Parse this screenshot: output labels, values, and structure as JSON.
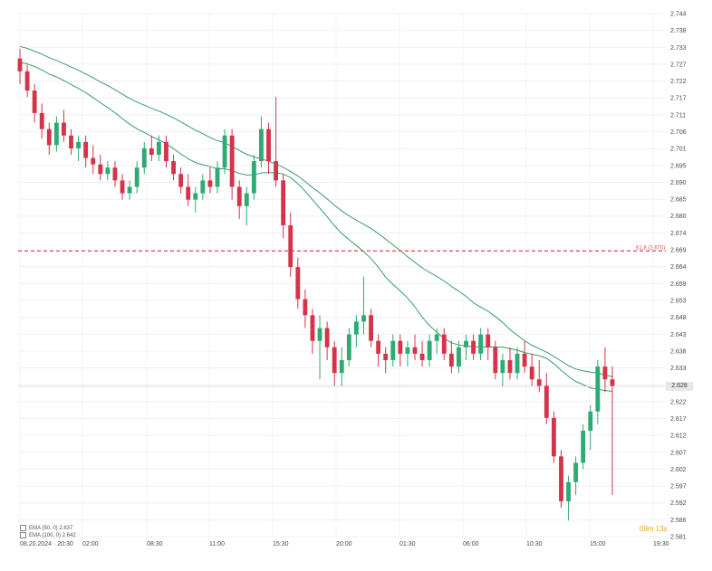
{
  "chart_data": {
    "type": "candlestick",
    "y_ticks": [
      "2.744",
      "2.738",
      "2.733",
      "2.727",
      "2.722",
      "2.717",
      "2.711",
      "2.706",
      "2.701",
      "2.695",
      "2.690",
      "2.685",
      "2.680",
      "2.674",
      "2.669",
      "2.664",
      "2.659",
      "2.653",
      "2.648",
      "2.643",
      "2.638",
      "2.633",
      "2.627",
      "2.622",
      "2.617",
      "2.612",
      "2.607",
      "2.602",
      "2.597",
      "2.592",
      "2.586",
      "2.581"
    ],
    "ylim": [
      2.581,
      2.744
    ],
    "x_ticks": [
      "08.20.2024 · 20:30",
      "02:00",
      "08:30",
      "11:00",
      "15:30",
      "20:00",
      "01:30",
      "06:00",
      "10:30",
      "15:00",
      "19:30"
    ],
    "current_price": "2.628",
    "fib_level": {
      "label": "61.8 (2.670)",
      "value": 2.67,
      "color": "#d9534f"
    },
    "moving_averages": [
      {
        "legend": "EMA (50, 0) 2.637",
        "color": "#3a9d6a"
      },
      {
        "legend": "EMA (100, 0) 2.642",
        "color": "#3a9d6a"
      }
    ],
    "colors": {
      "up": "#2eaa73",
      "down": "#d6334a"
    },
    "candles": [
      [
        2.73,
        2.733,
        2.722,
        2.726
      ],
      [
        2.726,
        2.728,
        2.718,
        2.72
      ],
      [
        2.72,
        2.722,
        2.71,
        2.713
      ],
      [
        2.713,
        2.716,
        2.705,
        2.708
      ],
      [
        2.708,
        2.71,
        2.7,
        2.703
      ],
      [
        2.703,
        2.712,
        2.701,
        2.71
      ],
      [
        2.71,
        2.714,
        2.704,
        2.706
      ],
      [
        2.706,
        2.708,
        2.7,
        2.702
      ],
      [
        2.702,
        2.706,
        2.698,
        2.704
      ],
      [
        2.704,
        2.706,
        2.696,
        2.699
      ],
      [
        2.699,
        2.703,
        2.694,
        2.697
      ],
      [
        2.697,
        2.7,
        2.692,
        2.694
      ],
      [
        2.694,
        2.698,
        2.692,
        2.696
      ],
      [
        2.696,
        2.698,
        2.69,
        2.692
      ],
      [
        2.692,
        2.694,
        2.686,
        2.688
      ],
      [
        2.688,
        2.692,
        2.686,
        2.69
      ],
      [
        2.69,
        2.698,
        2.688,
        2.696
      ],
      [
        2.696,
        2.704,
        2.694,
        2.702
      ],
      [
        2.702,
        2.706,
        2.698,
        2.7
      ],
      [
        2.7,
        2.706,
        2.698,
        2.704
      ],
      [
        2.704,
        2.706,
        2.696,
        2.698
      ],
      [
        2.698,
        2.7,
        2.692,
        2.694
      ],
      [
        2.694,
        2.696,
        2.688,
        2.69
      ],
      [
        2.69,
        2.694,
        2.684,
        2.686
      ],
      [
        2.686,
        2.69,
        2.682,
        2.688
      ],
      [
        2.688,
        2.694,
        2.686,
        2.692
      ],
      [
        2.692,
        2.696,
        2.688,
        2.69
      ],
      [
        2.69,
        2.698,
        2.688,
        2.696
      ],
      [
        2.696,
        2.708,
        2.694,
        2.706
      ],
      [
        2.706,
        2.708,
        2.686,
        2.69
      ],
      [
        2.69,
        2.692,
        2.68,
        2.684
      ],
      [
        2.684,
        2.69,
        2.678,
        2.688
      ],
      [
        2.688,
        2.7,
        2.686,
        2.698
      ],
      [
        2.698,
        2.712,
        2.696,
        2.708
      ],
      [
        2.708,
        2.71,
        2.694,
        2.698
      ],
      [
        2.698,
        2.718,
        2.69,
        2.692
      ],
      [
        2.692,
        2.694,
        2.674,
        2.678
      ],
      [
        2.678,
        2.682,
        2.662,
        2.665
      ],
      [
        2.665,
        2.668,
        2.652,
        2.655
      ],
      [
        2.655,
        2.658,
        2.646,
        2.65
      ],
      [
        2.65,
        2.652,
        2.638,
        2.642
      ],
      [
        2.642,
        2.65,
        2.63,
        2.646
      ],
      [
        2.646,
        2.648,
        2.636,
        2.64
      ],
      [
        2.64,
        2.642,
        2.628,
        2.632
      ],
      [
        2.632,
        2.64,
        2.628,
        2.636
      ],
      [
        2.636,
        2.646,
        2.634,
        2.644
      ],
      [
        2.644,
        2.65,
        2.64,
        2.648
      ],
      [
        2.648,
        2.662,
        2.644,
        2.65
      ],
      [
        2.65,
        2.652,
        2.64,
        2.642
      ],
      [
        2.642,
        2.644,
        2.634,
        2.638
      ],
      [
        2.638,
        2.64,
        2.632,
        2.636
      ],
      [
        2.636,
        2.644,
        2.634,
        2.642
      ],
      [
        2.642,
        2.644,
        2.634,
        2.638
      ],
      [
        2.638,
        2.642,
        2.634,
        2.64
      ],
      [
        2.64,
        2.644,
        2.636,
        2.638
      ],
      [
        2.638,
        2.642,
        2.634,
        2.636
      ],
      [
        2.636,
        2.644,
        2.634,
        2.642
      ],
      [
        2.642,
        2.646,
        2.638,
        2.644
      ],
      [
        2.644,
        2.646,
        2.636,
        2.638
      ],
      [
        2.638,
        2.642,
        2.632,
        2.634
      ],
      [
        2.634,
        2.642,
        2.632,
        2.64
      ],
      [
        2.64,
        2.644,
        2.636,
        2.642
      ],
      [
        2.642,
        2.644,
        2.636,
        2.638
      ],
      [
        2.638,
        2.646,
        2.636,
        2.644
      ],
      [
        2.644,
        2.646,
        2.636,
        2.64
      ],
      [
        2.64,
        2.642,
        2.63,
        2.632
      ],
      [
        2.632,
        2.638,
        2.628,
        2.636
      ],
      [
        2.636,
        2.64,
        2.63,
        2.632
      ],
      [
        2.632,
        2.64,
        2.63,
        2.638
      ],
      [
        2.638,
        2.642,
        2.632,
        2.634
      ],
      [
        2.634,
        2.638,
        2.628,
        2.63
      ],
      [
        2.63,
        2.636,
        2.626,
        2.628
      ],
      [
        2.628,
        2.632,
        2.616,
        2.618
      ],
      [
        2.618,
        2.62,
        2.604,
        2.606
      ],
      [
        2.606,
        2.608,
        2.59,
        2.592
      ],
      [
        2.592,
        2.6,
        2.586,
        2.598
      ],
      [
        2.598,
        2.606,
        2.594,
        2.604
      ],
      [
        2.604,
        2.616,
        2.602,
        2.614
      ],
      [
        2.614,
        2.622,
        2.608,
        2.62
      ],
      [
        2.62,
        2.636,
        2.616,
        2.634
      ],
      [
        2.634,
        2.64,
        2.626,
        2.63
      ],
      [
        2.63,
        2.634,
        2.594,
        2.628
      ]
    ]
  }
}
